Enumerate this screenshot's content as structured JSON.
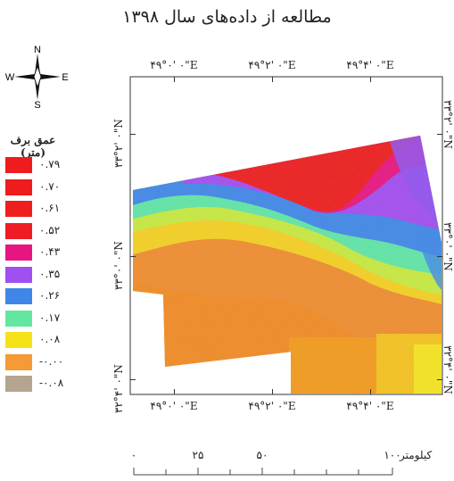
{
  "title": "مطالعه از داده‌های سال ۱۳۹۸",
  "north_arrow": {
    "n": "N",
    "s": "S",
    "e": "E",
    "w": "W"
  },
  "legend": {
    "title": "عمق برف (متر)",
    "items": [
      {
        "label": "۰.۷۹",
        "color": "#ee1c1c"
      },
      {
        "label": "۰.۷۰",
        "color": "#ee1c1c"
      },
      {
        "label": "۰.۶۱",
        "color": "#ef1f1f"
      },
      {
        "label": "۰.۵۲",
        "color": "#ee1c24"
      },
      {
        "label": "۰.۴۳",
        "color": "#e8147f"
      },
      {
        "label": "۰.۳۵",
        "color": "#a04ff0"
      },
      {
        "label": "۰.۲۶",
        "color": "#3f86e8"
      },
      {
        "label": "۰.۱۷",
        "color": "#63e6a0"
      },
      {
        "label": "۰.۰۸",
        "color": "#f5e21b"
      },
      {
        "label": "-۰.۰۰",
        "color": "#f59a35"
      },
      {
        "label": "-۰.۰۸",
        "color": "#b5a48f"
      }
    ]
  },
  "axes": {
    "top": [
      "۴۹°۰' ۰\"E",
      "۴۹°۲' ۰\"E",
      "۴۹°۴' ۰\"E"
    ],
    "bottom": [
      "۴۹°۰' ۰\"E",
      "۴۹°۲' ۰\"E",
      "۴۹°۴' ۰\"E"
    ],
    "left": [
      "۳۳°۲' ۰\"N",
      "۳۳°۰' ۰\"N",
      "۳۲°۴' ۰\"N"
    ],
    "right": [
      "۳۳°۲' ۰\"N",
      "۳۳°۰' ۰\"N",
      "۳۲°۴' ۰\"N"
    ]
  },
  "scale_bar": {
    "labels": [
      "۰",
      "۲۵",
      "۵۰",
      "۱۰۰"
    ],
    "unit": "کیلومتر"
  }
}
